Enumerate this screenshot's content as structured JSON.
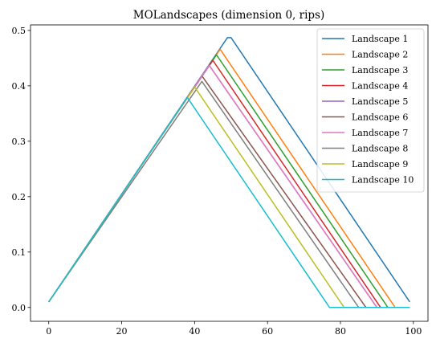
{
  "chart_data": {
    "type": "line",
    "title": "MOLandscapes (dimension 0, rips)",
    "xlabel": "",
    "ylabel": "",
    "xlim": [
      -5,
      104
    ],
    "ylim": [
      -0.025,
      0.51
    ],
    "xticks": [
      0,
      20,
      40,
      60,
      80,
      100
    ],
    "xtick_labels": [
      "0",
      "20",
      "40",
      "60",
      "80",
      "100"
    ],
    "yticks": [
      0.0,
      0.1,
      0.2,
      0.3,
      0.4,
      0.5
    ],
    "ytick_labels": [
      "0.0",
      "0.1",
      "0.2",
      "0.3",
      "0.4",
      "0.5"
    ],
    "grid": false,
    "legend_position": "top-right",
    "series": [
      {
        "name": "Landscape 1",
        "color": "#1f77b4",
        "x": [
          0,
          49,
          50,
          99
        ],
        "y": [
          0.01,
          0.487,
          0.487,
          0.01
        ]
      },
      {
        "name": "Landscape 2",
        "color": "#ff7f0e",
        "x": [
          0,
          47,
          95,
          99
        ],
        "y": [
          0.01,
          0.466,
          0.0,
          0.0
        ]
      },
      {
        "name": "Landscape 3",
        "color": "#2ca02c",
        "x": [
          0,
          46,
          93,
          99
        ],
        "y": [
          0.01,
          0.456,
          0.0,
          0.0
        ]
      },
      {
        "name": "Landscape 4",
        "color": "#d62728",
        "x": [
          0,
          45,
          91,
          99
        ],
        "y": [
          0.01,
          0.446,
          0.0,
          0.0
        ]
      },
      {
        "name": "Landscape 5",
        "color": "#9467bd",
        "x": [
          0,
          44,
          90,
          99
        ],
        "y": [
          0.01,
          0.437,
          0.0,
          0.0
        ]
      },
      {
        "name": "Landscape 6",
        "color": "#8c564b",
        "x": [
          0,
          42,
          87,
          99
        ],
        "y": [
          0.01,
          0.418,
          0.0,
          0.0
        ]
      },
      {
        "name": "Landscape 7",
        "color": "#e377c2",
        "x": [
          0,
          44,
          90,
          99
        ],
        "y": [
          0.01,
          0.437,
          0.0,
          0.0
        ]
      },
      {
        "name": "Landscape 8",
        "color": "#7f7f7f",
        "x": [
          0,
          42,
          85,
          99
        ],
        "y": [
          0.01,
          0.408,
          0.0,
          0.0
        ]
      },
      {
        "name": "Landscape 9",
        "color": "#bcbd22",
        "x": [
          0,
          40,
          81,
          99
        ],
        "y": [
          0.01,
          0.398,
          0.0,
          0.0
        ]
      },
      {
        "name": "Landscape 10",
        "color": "#17becf",
        "x": [
          0,
          38,
          77,
          99
        ],
        "y": [
          0.01,
          0.379,
          0.0,
          0.0
        ]
      }
    ]
  }
}
